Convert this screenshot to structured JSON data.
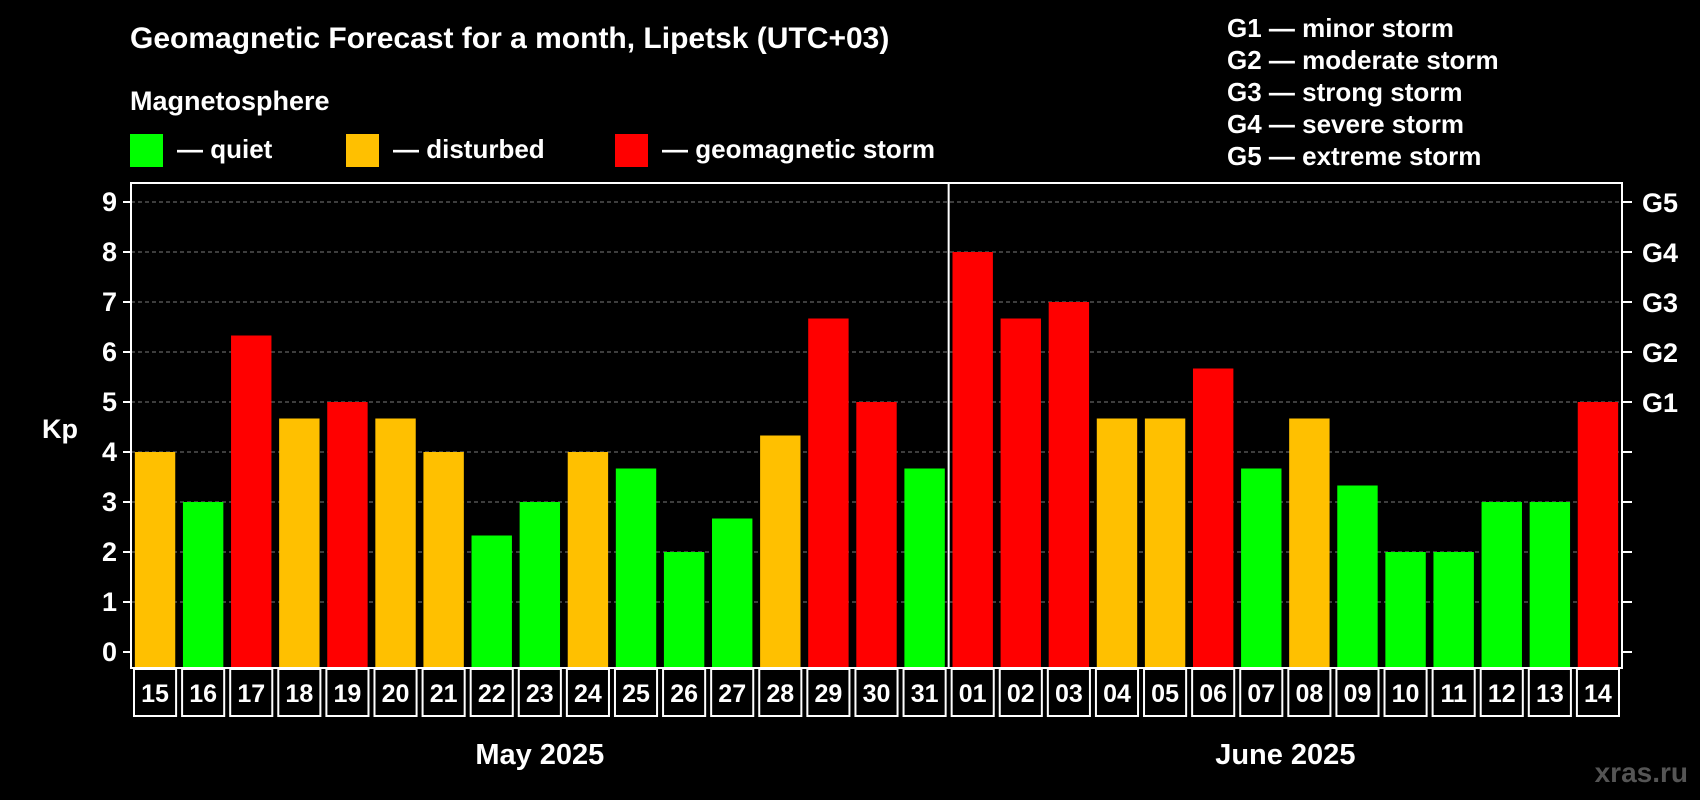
{
  "chart_data": {
    "type": "bar",
    "title": "Geomagnetic Forecast for a month, Lipetsk (UTC+03)",
    "subtitle": "Magnetosphere",
    "ylabel": "Kp",
    "ylim": [
      0,
      9
    ],
    "yticks": [
      "0",
      "1",
      "2",
      "3",
      "4",
      "5",
      "6",
      "7",
      "8",
      "9"
    ],
    "grid": true,
    "legend": [
      {
        "label": "— quiet",
        "color": "#00ff00"
      },
      {
        "label": "— disturbed",
        "color": "#ffc000"
      },
      {
        "label": "— geomagnetic storm",
        "color": "#ff0000"
      }
    ],
    "storm_levels": [
      "G1 — minor storm",
      "G2 — moderate storm",
      "G3 — strong storm",
      "G4 — severe storm",
      "G5 — extreme storm"
    ],
    "right_axis": [
      {
        "label": "G1",
        "kp": 5
      },
      {
        "label": "G2",
        "kp": 6
      },
      {
        "label": "G3",
        "kp": 7
      },
      {
        "label": "G4",
        "kp": 8
      },
      {
        "label": "G5",
        "kp": 9
      }
    ],
    "months": [
      {
        "label": "May 2025",
        "days": 17
      },
      {
        "label": "June 2025",
        "days": 14
      }
    ],
    "categories": [
      "15",
      "16",
      "17",
      "18",
      "19",
      "20",
      "21",
      "22",
      "23",
      "24",
      "25",
      "26",
      "27",
      "28",
      "29",
      "30",
      "31",
      "01",
      "02",
      "03",
      "04",
      "05",
      "06",
      "07",
      "08",
      "09",
      "10",
      "11",
      "12",
      "13",
      "14"
    ],
    "values": [
      4,
      3,
      6.33,
      4.67,
      5,
      4.67,
      4,
      2.33,
      3,
      4,
      3.67,
      2,
      2.67,
      4.33,
      6.67,
      5,
      3.67,
      8,
      6.67,
      7,
      4.67,
      4.67,
      5.67,
      3.67,
      4.67,
      3.33,
      2,
      2,
      3,
      3,
      5
    ],
    "colors": [
      "#ffc000",
      "#00ff00",
      "#ff0000",
      "#ffc000",
      "#ff0000",
      "#ffc000",
      "#ffc000",
      "#00ff00",
      "#00ff00",
      "#ffc000",
      "#00ff00",
      "#00ff00",
      "#00ff00",
      "#ffc000",
      "#ff0000",
      "#ff0000",
      "#00ff00",
      "#ff0000",
      "#ff0000",
      "#ff0000",
      "#ffc000",
      "#ffc000",
      "#ff0000",
      "#00ff00",
      "#ffc000",
      "#00ff00",
      "#00ff00",
      "#00ff00",
      "#00ff00",
      "#00ff00",
      "#ff0000"
    ]
  },
  "watermark": "xras.ru"
}
